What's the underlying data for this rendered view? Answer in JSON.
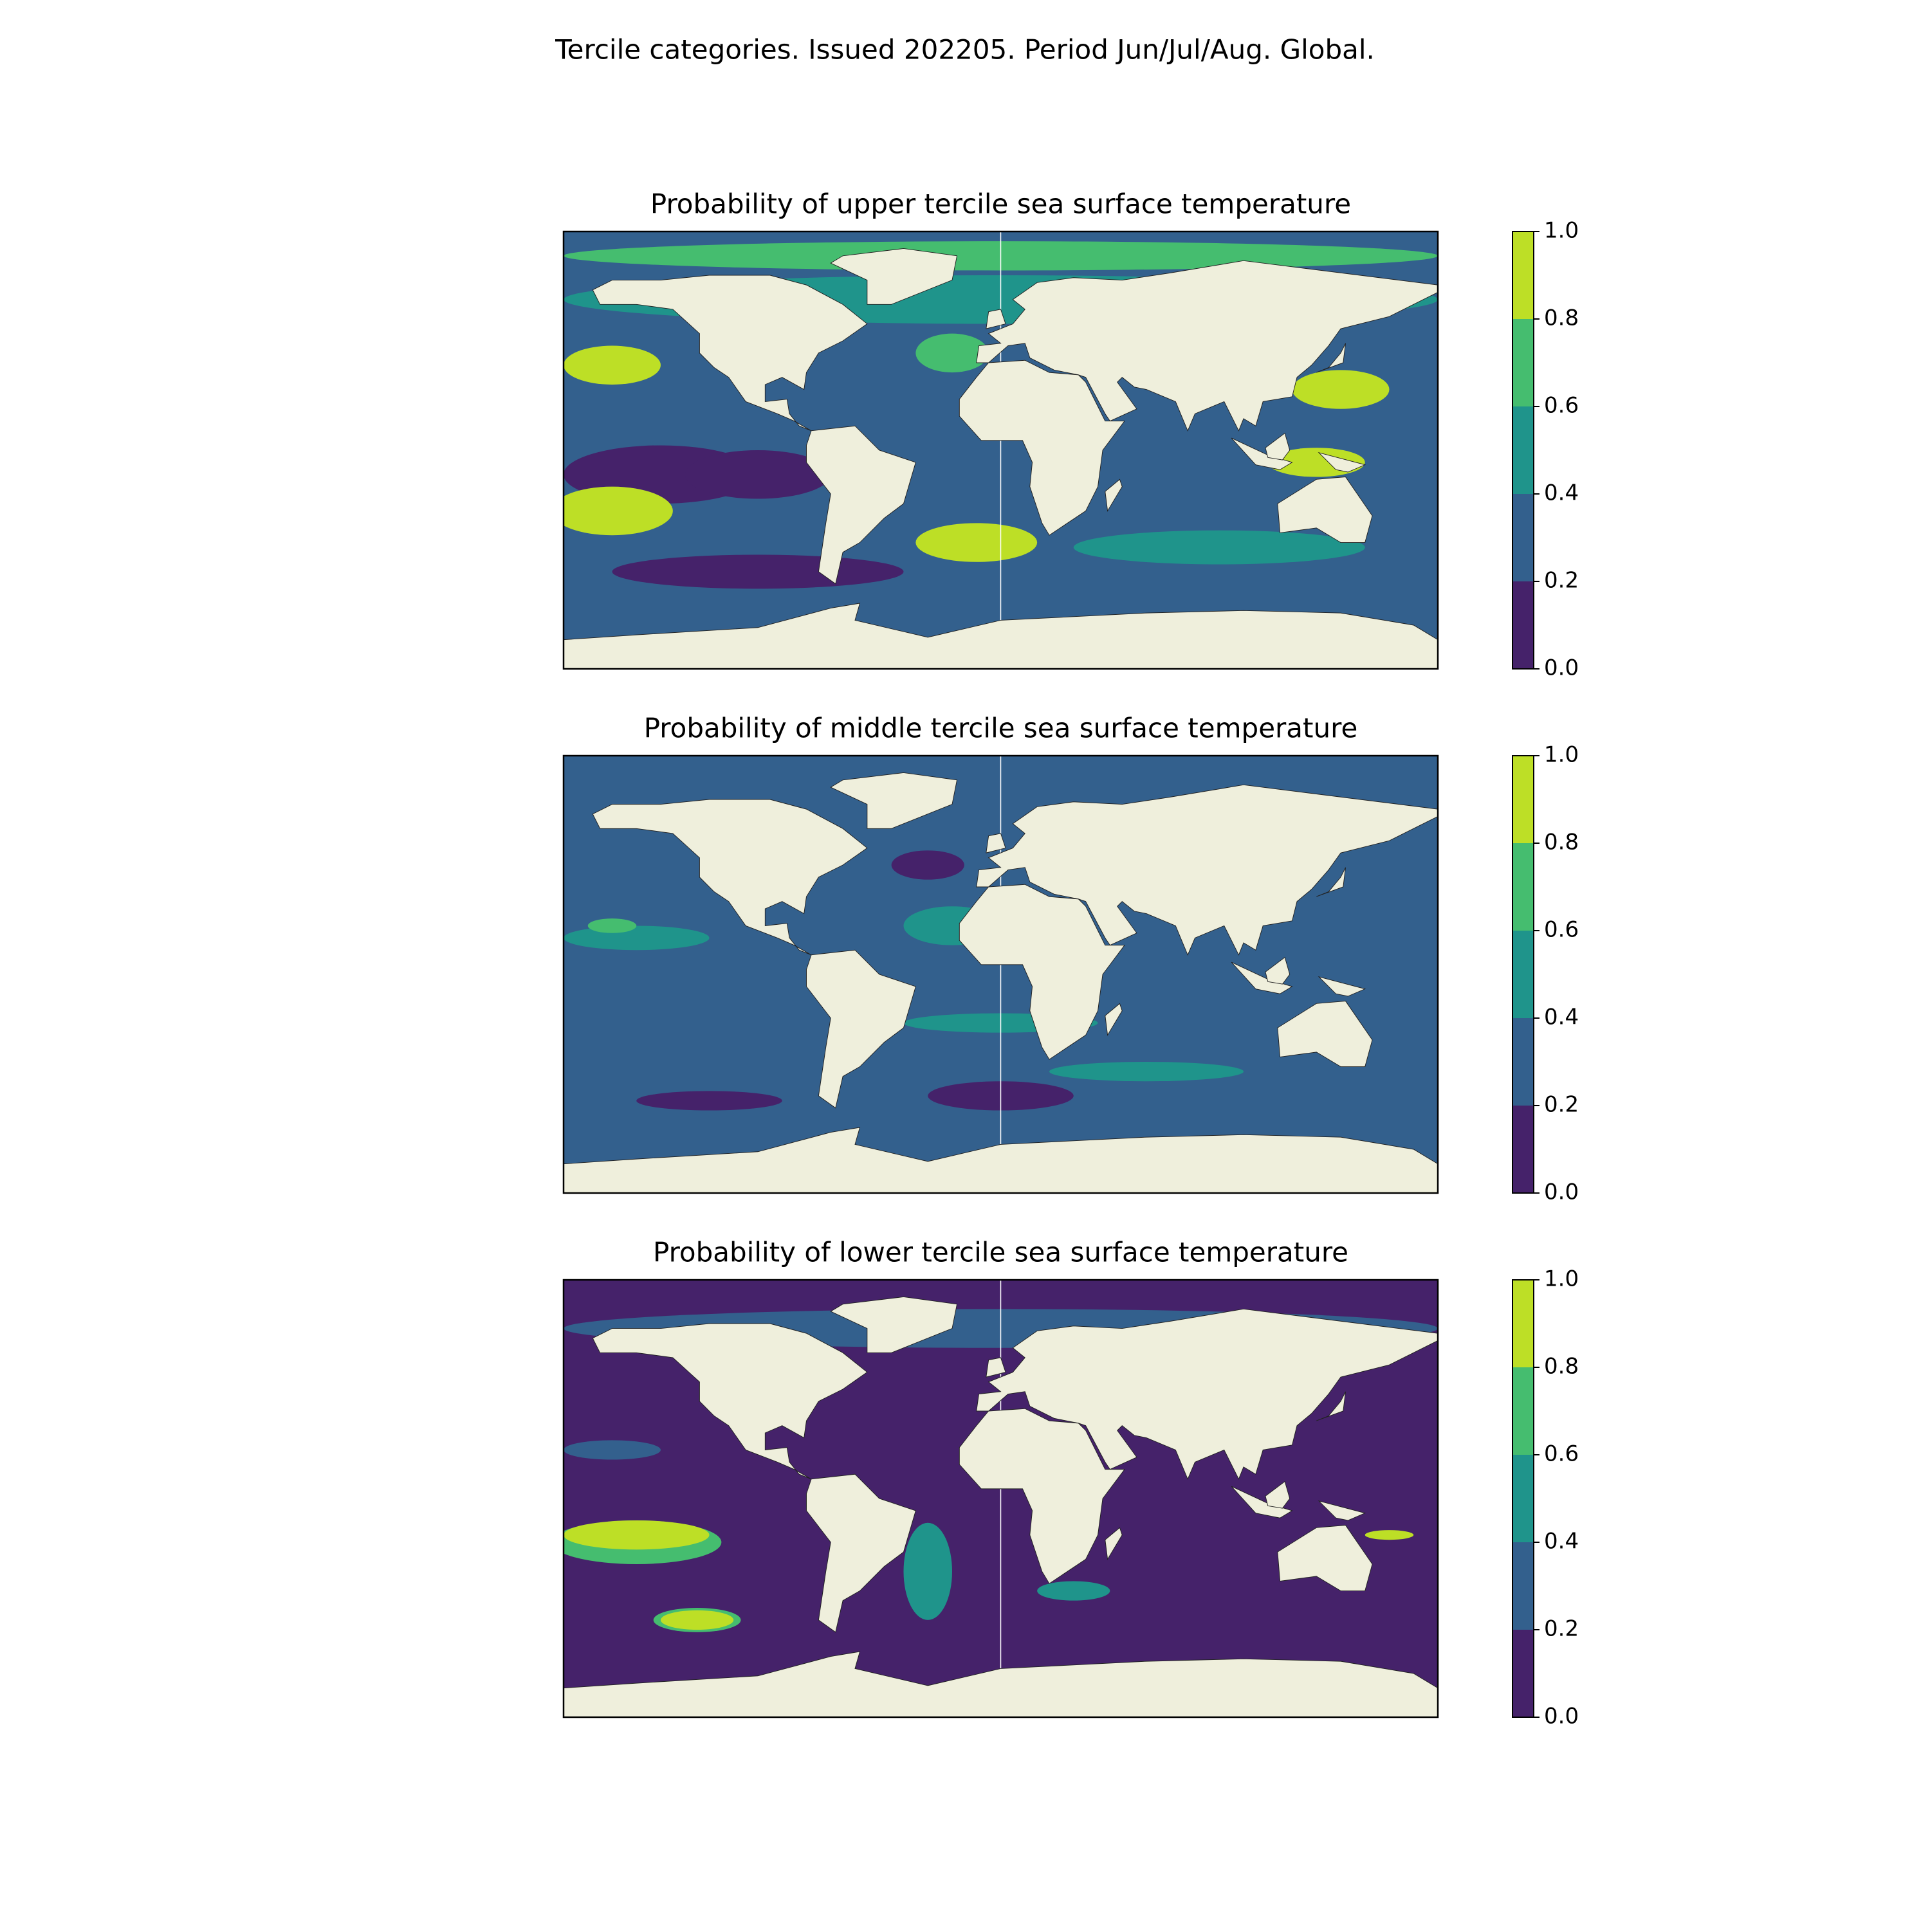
{
  "title": "Tercile categories. Issued 202205. Period Jun/Jul/Aug. Global.",
  "panels": [
    {
      "title": "Probability of upper tercile sea surface temperature",
      "colorbar": {
        "ticks": [
          {
            "value": 0,
            "label": "0.0"
          },
          {
            "value": 0.2,
            "label": "0.2"
          },
          {
            "value": 0.4,
            "label": "0.4"
          },
          {
            "value": 0.6,
            "label": "0.6"
          },
          {
            "value": 0.8,
            "label": "0.8"
          },
          {
            "value": 1,
            "label": "1.0"
          }
        ],
        "colors": [
          "#45226a",
          "#33608d",
          "#1f948b",
          "#45bd6f",
          "#bddf26"
        ]
      }
    },
    {
      "title": "Probability of middle tercile sea surface temperature",
      "colorbar": {
        "ticks": [
          {
            "value": 0,
            "label": "0.0"
          },
          {
            "value": 0.2,
            "label": "0.2"
          },
          {
            "value": 0.4,
            "label": "0.4"
          },
          {
            "value": 0.6,
            "label": "0.6"
          },
          {
            "value": 0.8,
            "label": "0.8"
          },
          {
            "value": 1,
            "label": "1.0"
          }
        ],
        "colors": [
          "#45226a",
          "#33608d",
          "#1f948b",
          "#45bd6f",
          "#bddf26"
        ]
      }
    },
    {
      "title": "Probability of lower tercile sea surface temperature",
      "colorbar": {
        "ticks": [
          {
            "value": 0,
            "label": "0.0"
          },
          {
            "value": 0.2,
            "label": "0.2"
          },
          {
            "value": 0.4,
            "label": "0.4"
          },
          {
            "value": 0.6,
            "label": "0.6"
          },
          {
            "value": 0.8,
            "label": "0.8"
          },
          {
            "value": 1,
            "label": "1.0"
          }
        ],
        "colors": [
          "#45226a",
          "#33608d",
          "#1f948b",
          "#45bd6f",
          "#bddf26"
        ]
      }
    }
  ]
}
